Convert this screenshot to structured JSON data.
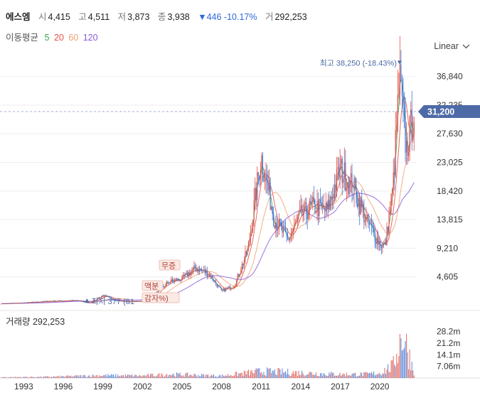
{
  "header": {
    "name": "에스엠",
    "open_label": "시",
    "open": "4,415",
    "high_label": "고",
    "high": "4,511",
    "low_label": "저",
    "low": "3,873",
    "close_label": "종",
    "close": "3,938",
    "change": "▼446 -10.17%",
    "volume_label": "거",
    "volume": "292,253"
  },
  "ma_legend": {
    "title": "이동평균",
    "ma5": "5",
    "ma20": "20",
    "ma60": "60",
    "ma120": "120"
  },
  "scale_mode": "Linear",
  "colors": {
    "up": "#e0524a",
    "down": "#3f78d6",
    "ma5": "#3aa64a",
    "ma20": "#e0524a",
    "ma60": "#f0a070",
    "ma120": "#8a5bd6",
    "badge": "#4d6aa6"
  },
  "chart_data": {
    "type": "candlestick",
    "price_ticks": [
      "36,840",
      "32,235",
      "27,630",
      "23,025",
      "18,420",
      "13,815",
      "9,210",
      "4,605"
    ],
    "price_tick_values": [
      36840,
      32235,
      27630,
      23025,
      18420,
      13815,
      9210,
      4605
    ],
    "ylim": [
      0,
      40000
    ],
    "x_ticks": [
      "1993",
      "1996",
      "1999",
      "2002",
      "2005",
      "2008",
      "2011",
      "2014",
      "2017",
      "2020"
    ],
    "xlim": [
      1991.2,
      2022.8
    ],
    "current_price": "31,200",
    "high_annotation": "최고 38,250 (-18.43%)",
    "high_point": {
      "x": 2021.5,
      "y": 38250
    },
    "low_annotation": "최저 377 (81",
    "low_point": {
      "x": 1997.8,
      "y": 377
    },
    "event_labels": [
      "무증",
      "액분",
      "감자%)"
    ],
    "volume_title": "거래량 292,253",
    "volume_ticks": [
      "28.2m",
      "21.2m",
      "14.1m",
      "7.06m"
    ],
    "volume_tick_values": [
      28.2,
      21.2,
      14.1,
      7.06
    ],
    "volume_max": 31,
    "price_path": [
      [
        1991.3,
        300
      ],
      [
        1993,
        420
      ],
      [
        1995,
        700
      ],
      [
        1997,
        800
      ],
      [
        1998,
        400
      ],
      [
        1999,
        1600
      ],
      [
        2000,
        800
      ],
      [
        2001,
        600
      ],
      [
        2002,
        700
      ],
      [
        2003,
        1900
      ],
      [
        2004,
        3800
      ],
      [
        2005,
        4300
      ],
      [
        2006,
        6000
      ],
      [
        2007,
        5200
      ],
      [
        2008,
        2300
      ],
      [
        2009,
        3300
      ],
      [
        2010,
        9000
      ],
      [
        2011,
        24000
      ],
      [
        2012,
        14000
      ],
      [
        2013,
        10500
      ],
      [
        2014,
        14500
      ],
      [
        2015,
        16000
      ],
      [
        2016,
        15200
      ],
      [
        2017,
        22000
      ],
      [
        2018,
        19000
      ],
      [
        2019,
        13500
      ],
      [
        2020,
        10000
      ],
      [
        2020.4,
        9500
      ],
      [
        2021,
        19000
      ],
      [
        2021.5,
        36500
      ],
      [
        2022,
        25000
      ],
      [
        2022.6,
        31200
      ]
    ],
    "volume_path": [
      [
        1991.3,
        0.5
      ],
      [
        1995,
        0.8
      ],
      [
        1999,
        1.8
      ],
      [
        2002,
        1.5
      ],
      [
        2004,
        2.5
      ],
      [
        2008,
        1.5
      ],
      [
        2011,
        4.5
      ],
      [
        2014,
        3.5
      ],
      [
        2017,
        2.5
      ],
      [
        2019,
        2.5
      ],
      [
        2020,
        3.5
      ],
      [
        2021,
        8
      ],
      [
        2021.7,
        30
      ],
      [
        2022.6,
        5
      ]
    ],
    "ma_periods": [
      5,
      20,
      60,
      120
    ]
  }
}
